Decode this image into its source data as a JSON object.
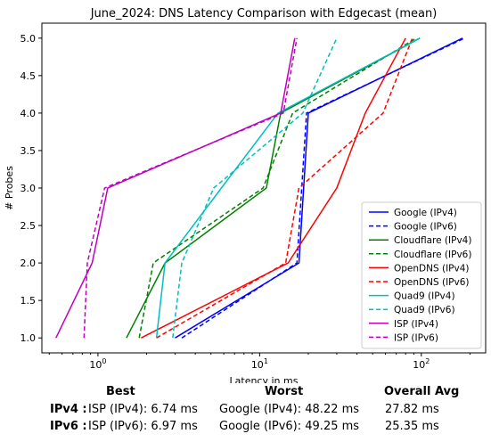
{
  "chart_data": {
    "type": "line",
    "title": "June_2024: DNS Latency Comparison with Edgecast (mean)",
    "xlabel": "Latency in ms",
    "ylabel": "# Probes",
    "xscale": "log",
    "xlim": [
      0.45,
      250
    ],
    "ylim": [
      0.8,
      5.2
    ],
    "x_ticks": [
      1,
      10,
      100
    ],
    "x_tick_labels": [
      "10^0",
      "10^1",
      "10^2"
    ],
    "y_ticks": [
      1.0,
      1.5,
      2.0,
      2.5,
      3.0,
      3.5,
      4.0,
      4.5,
      5.0
    ],
    "y_tick_labels": [
      "1.0",
      "1.5",
      "2.0",
      "2.5",
      "3.0",
      "3.5",
      "4.0",
      "4.5",
      "5.0"
    ],
    "grid": false,
    "legend_position": "lower right",
    "series": [
      {
        "name": "Google (IPv4)",
        "color": "#0000ff",
        "dash": "solid",
        "x": [
          3.0,
          17.5,
          20.0,
          180.0
        ],
        "y": [
          1,
          2,
          4,
          5
        ]
      },
      {
        "name": "Google (IPv6)",
        "color": "#0000ff",
        "dash": "dashed",
        "x": [
          3.3,
          17.0,
          19.5,
          185.0
        ],
        "y": [
          1,
          2,
          4,
          5
        ]
      },
      {
        "name": "Cloudflare (IPv4)",
        "color": "#008000",
        "dash": "solid",
        "x": [
          1.5,
          2.6,
          11.0,
          13.5,
          98.0
        ],
        "y": [
          1,
          2,
          3,
          4,
          5
        ]
      },
      {
        "name": "Cloudflare (IPv6)",
        "color": "#008000",
        "dash": "dashed",
        "x": [
          1.8,
          2.2,
          10.5,
          16.0,
          93.0
        ],
        "y": [
          1,
          2,
          3,
          4,
          5
        ]
      },
      {
        "name": "OpenDNS (IPv4)",
        "color": "#ff0000",
        "dash": "solid",
        "x": [
          1.85,
          15.0,
          30.0,
          45.0,
          80.0
        ],
        "y": [
          1,
          2,
          3,
          4,
          5
        ]
      },
      {
        "name": "OpenDNS (IPv6)",
        "color": "#ff0000",
        "dash": "dashed",
        "x": [
          2.3,
          14.5,
          17.5,
          58.0,
          88.0
        ],
        "y": [
          1,
          2,
          3,
          4,
          5
        ]
      },
      {
        "name": "Quad9 (IPv4)",
        "color": "#00bfbf",
        "dash": "solid",
        "x": [
          2.3,
          2.6,
          5.8,
          13.0,
          98.0
        ],
        "y": [
          1,
          2,
          3,
          4,
          5
        ]
      },
      {
        "name": "Quad9 (IPv6)",
        "color": "#00bfbf",
        "dash": "dashed",
        "x": [
          2.9,
          3.3,
          5.2,
          18.5,
          30.0
        ],
        "y": [
          1,
          2,
          3,
          4,
          5
        ]
      },
      {
        "name": "ISP (IPv4)",
        "color": "#bf00bf",
        "dash": "solid",
        "x": [
          0.55,
          0.92,
          1.15,
          13.5,
          16.5
        ],
        "y": [
          1,
          2,
          3,
          4,
          5
        ]
      },
      {
        "name": "ISP (IPv6)",
        "color": "#bf00bf",
        "dash": "dashed",
        "x": [
          0.82,
          0.86,
          1.1,
          14.0,
          17.0
        ],
        "y": [
          1,
          2,
          3,
          4,
          5
        ]
      }
    ]
  },
  "summary": {
    "headers": {
      "best": "Best",
      "worst": "Worst",
      "avg": "Overall Avg"
    },
    "rows": [
      {
        "label": "IPv4 :",
        "best": "ISP (IPv4): 6.74 ms",
        "worst": "Google (IPv4): 48.22 ms",
        "avg": "27.82 ms"
      },
      {
        "label": "IPv6 :",
        "best": "ISP (IPv6): 6.97 ms",
        "worst": "Google (IPv6): 49.25 ms",
        "avg": "25.35 ms"
      }
    ]
  }
}
